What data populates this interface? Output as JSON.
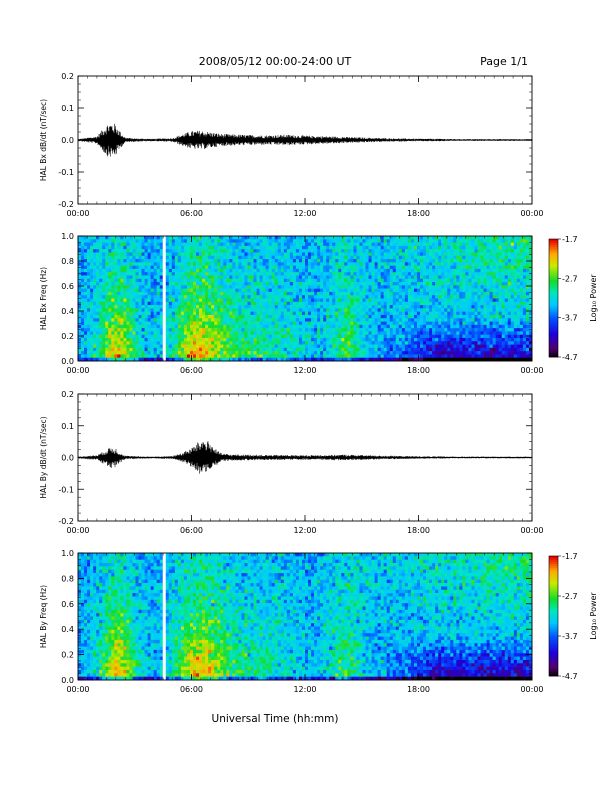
{
  "header": {
    "title": "2008/05/12  00:00-24:00 UT",
    "page": "Page 1/1"
  },
  "chart_data": [
    {
      "type": "line",
      "station": "HAL",
      "component": "Bx",
      "ylabel": "HAL Bx dB/dt (nT/sec)",
      "ylim": [
        -0.2,
        0.2
      ],
      "yticks": [
        "0.2",
        "0.1",
        "0.0",
        "-0.1",
        "-0.2"
      ],
      "xticks": [
        "00:00",
        "06:00",
        "12:00",
        "18:00",
        "00:00"
      ],
      "xlim_hours": [
        0,
        24
      ],
      "series": [
        {
          "hours": [
            0,
            1.0,
            1.25,
            1.5,
            1.75,
            2.0,
            2.25,
            2.5,
            3.0,
            4.0,
            5.0,
            5.5,
            6.0,
            6.5,
            7.0,
            7.5,
            8.0,
            9.0,
            10.0,
            11.0,
            12.0,
            13.0,
            14.0,
            15.0,
            16.0,
            17.0,
            18.0,
            19.0,
            20.0,
            22.0,
            24.0
          ],
          "amplitude": [
            0.003,
            0.012,
            0.03,
            0.05,
            0.055,
            0.05,
            0.025,
            0.008,
            0.005,
            0.004,
            0.006,
            0.018,
            0.028,
            0.03,
            0.025,
            0.02,
            0.018,
            0.016,
            0.015,
            0.017,
            0.014,
            0.012,
            0.01,
            0.008,
            0.006,
            0.005,
            0.004,
            0.004,
            0.003,
            0.003,
            0.003
          ]
        }
      ]
    },
    {
      "type": "heatmap",
      "station": "HAL",
      "component": "Bx",
      "ylabel": "HAL Bx Freq (Hz)",
      "ylim": [
        0,
        1.0
      ],
      "yticks": [
        "1.0",
        "0.8",
        "0.6",
        "0.4",
        "0.2",
        "0.0"
      ],
      "xticks": [
        "00:00",
        "06:00",
        "12:00",
        "18:00",
        "00:00"
      ],
      "xlim_hours": [
        0,
        24
      ],
      "colorbar": {
        "label": "Log₁₀ Power",
        "range": [
          -4.7,
          -1.7
        ],
        "ticks": [
          "-1.7",
          "-2.7",
          "-3.7",
          "-4.7"
        ]
      },
      "activity_bands": [
        {
          "center_hours": 2.1,
          "width_hours": 1.2,
          "strength": 1.0
        },
        {
          "center_hours": 6.4,
          "width_hours": 1.6,
          "strength": 1.0
        },
        {
          "center_hours": 9.5,
          "width_hours": 3.0,
          "strength": 0.45
        },
        {
          "center_hours": 14.2,
          "width_hours": 1.0,
          "strength": 0.55
        }
      ],
      "quiet_low_freq_after_hours": 16,
      "data_gap_hours": 4.6
    },
    {
      "type": "line",
      "station": "HAL",
      "component": "By",
      "ylabel": "HAL By dB/dt (nT/sec)",
      "ylim": [
        -0.2,
        0.2
      ],
      "yticks": [
        "0.2",
        "0.1",
        "0.0",
        "-0.1",
        "-0.2"
      ],
      "xticks": [
        "00:00",
        "06:00",
        "12:00",
        "18:00",
        "00:00"
      ],
      "xlim_hours": [
        0,
        24
      ],
      "series": [
        {
          "hours": [
            0,
            1.0,
            1.5,
            1.75,
            2.0,
            2.25,
            2.5,
            3.0,
            4.0,
            5.0,
            5.5,
            6.0,
            6.25,
            6.5,
            6.75,
            7.0,
            7.5,
            8.0,
            9.0,
            10.0,
            11.0,
            12.0,
            13.0,
            14.0,
            15.0,
            16.0,
            17.0,
            18.0,
            20.0,
            22.0,
            24.0
          ],
          "amplitude": [
            0.003,
            0.008,
            0.025,
            0.035,
            0.03,
            0.015,
            0.006,
            0.004,
            0.003,
            0.005,
            0.015,
            0.03,
            0.045,
            0.055,
            0.06,
            0.045,
            0.015,
            0.01,
            0.009,
            0.008,
            0.008,
            0.007,
            0.008,
            0.009,
            0.008,
            0.006,
            0.005,
            0.004,
            0.003,
            0.003,
            0.003
          ]
        }
      ]
    },
    {
      "type": "heatmap",
      "station": "HAL",
      "component": "By",
      "ylabel": "HAL By Freq (Hz)",
      "ylim": [
        0,
        1.0
      ],
      "yticks": [
        "1.0",
        "0.8",
        "0.6",
        "0.4",
        "0.2",
        "0.0"
      ],
      "xticks": [
        "00:00",
        "06:00",
        "12:00",
        "18:00",
        "00:00"
      ],
      "xlim_hours": [
        0,
        24
      ],
      "colorbar": {
        "label": "Log₁₀ Power",
        "range": [
          -4.7,
          -1.7
        ],
        "ticks": [
          "-1.7",
          "-2.7",
          "-3.7",
          "-4.7"
        ]
      },
      "activity_bands": [
        {
          "center_hours": 2.1,
          "width_hours": 1.2,
          "strength": 1.0
        },
        {
          "center_hours": 6.4,
          "width_hours": 1.6,
          "strength": 1.0
        },
        {
          "center_hours": 9.5,
          "width_hours": 3.0,
          "strength": 0.4
        },
        {
          "center_hours": 14.2,
          "width_hours": 1.0,
          "strength": 0.5
        }
      ],
      "quiet_low_freq_after_hours": 16,
      "data_gap_hours": 4.6
    }
  ],
  "xlabel": "Universal Time (hh:mm)"
}
